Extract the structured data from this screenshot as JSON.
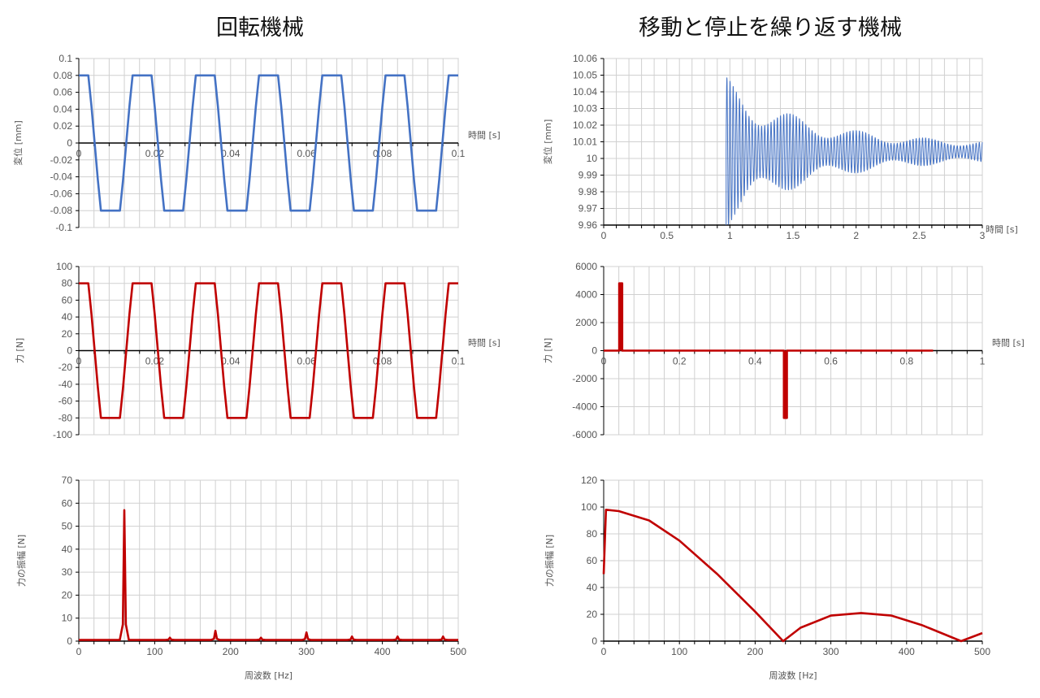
{
  "titles": {
    "left": "回転機械",
    "right": "移動と停止を繰り返す機械"
  },
  "colors": {
    "blue": "#4472c4",
    "red": "#c00000",
    "grid": "#d0d0d0",
    "axis": "#000000"
  },
  "chart_data": [
    {
      "id": "rot-disp",
      "type": "line",
      "color": "blue",
      "xlabel": "時間 [s]",
      "ylabel": "変位 [mm]",
      "xlim": [
        0,
        0.1
      ],
      "ylim": [
        -0.1,
        0.1
      ],
      "xticks": [
        0,
        0.02,
        0.04,
        0.06,
        0.08,
        0.1
      ],
      "xticklabels": [
        "0",
        "0.02",
        "0.04",
        "0.06",
        "0.08",
        "0.1"
      ],
      "yticks": [
        -0.1,
        -0.08,
        -0.06,
        -0.04,
        -0.02,
        0,
        0.02,
        0.04,
        0.06,
        0.08,
        0.1
      ],
      "yticklabels": [
        "-0.1",
        "-0.08",
        "-0.06",
        "-0.04",
        "-0.02",
        "0",
        "0.02",
        "0.04",
        "0.06",
        "0.08",
        "0.1"
      ],
      "x_tick_labels_on_zero_line": true,
      "signal": {
        "kind": "clipped-cosine",
        "frequency_hz": 60,
        "amplitude": 0.14,
        "clip": 0.08
      }
    },
    {
      "id": "rot-force",
      "type": "line",
      "color": "red",
      "xlabel": "時間 [s]",
      "ylabel": "力 [N]",
      "xlim": [
        0,
        0.1
      ],
      "ylim": [
        -100,
        100
      ],
      "xticks": [
        0,
        0.02,
        0.04,
        0.06,
        0.08,
        0.1
      ],
      "xticklabels": [
        "0",
        "0.02",
        "0.04",
        "0.06",
        "0.08",
        "0.1"
      ],
      "yticks": [
        -100,
        -80,
        -60,
        -40,
        -20,
        0,
        20,
        40,
        60,
        80,
        100
      ],
      "yticklabels": [
        "-100",
        "-80",
        "-60",
        "-40",
        "-20",
        "0",
        "20",
        "40",
        "60",
        "80",
        "100"
      ],
      "x_tick_labels_on_zero_line": true,
      "signal": {
        "kind": "clipped-cosine",
        "frequency_hz": 60,
        "amplitude": 140,
        "clip": 80
      }
    },
    {
      "id": "rot-spectrum",
      "type": "line",
      "color": "red",
      "xlabel": "周波数 [Hz]",
      "ylabel": "力の振幅 [N]",
      "xlim": [
        0,
        500
      ],
      "ylim": [
        0,
        70
      ],
      "xticks": [
        0,
        100,
        200,
        300,
        400,
        500
      ],
      "xticklabels": [
        "0",
        "100",
        "200",
        "300",
        "400",
        "500"
      ],
      "yticks": [
        0,
        10,
        20,
        30,
        40,
        50,
        60,
        70
      ],
      "yticklabels": [
        "0",
        "10",
        "20",
        "30",
        "40",
        "50",
        "60",
        "70"
      ],
      "x_tick_labels_on_zero_line": false,
      "peaks": [
        {
          "x": 60,
          "y": 57
        },
        {
          "x": 120,
          "y": 1.5
        },
        {
          "x": 180,
          "y": 4.5
        },
        {
          "x": 240,
          "y": 1.5
        },
        {
          "x": 300,
          "y": 3.8
        },
        {
          "x": 360,
          "y": 2
        },
        {
          "x": 420,
          "y": 2
        },
        {
          "x": 480,
          "y": 2
        }
      ],
      "baseline": 0.5
    },
    {
      "id": "stop-disp",
      "type": "line",
      "color": "blue",
      "xlabel": "時間 [s]",
      "ylabel": "変位 [mm]",
      "xlim": [
        0,
        3
      ],
      "ylim": [
        9.96,
        10.06
      ],
      "xticks": [
        0,
        0.5,
        1,
        1.5,
        2,
        2.5,
        3
      ],
      "xticklabels": [
        "0",
        "0.5",
        "1",
        "1.5",
        "2",
        "2.5",
        "3"
      ],
      "yticks": [
        9.96,
        9.97,
        9.98,
        9.99,
        10,
        10.01,
        10.02,
        10.03,
        10.04,
        10.05,
        10.06
      ],
      "yticklabels": [
        "9.96",
        "9.97",
        "9.98",
        "9.99",
        "10",
        "10.01",
        "10.02",
        "10.03",
        "10.04",
        "10.05",
        "10.06"
      ],
      "x_tick_labels_on_zero_line": false,
      "signal": {
        "kind": "decaying-oscillation",
        "start_s": 0.97,
        "center": 10.004,
        "initial_amplitude": 0.045,
        "final_amplitude": 0.005,
        "frequency_hz": 40
      }
    },
    {
      "id": "stop-force",
      "type": "line",
      "color": "red",
      "xlabel": "時間 [s]",
      "ylabel": "力 [N]",
      "xlim": [
        0,
        1
      ],
      "ylim": [
        -6000,
        6000
      ],
      "xticks": [
        0,
        0.2,
        0.4,
        0.6,
        0.8,
        1
      ],
      "xticklabels": [
        "0",
        "0.2",
        "0.4",
        "0.6",
        "0.8",
        "1"
      ],
      "yticks": [
        -6000,
        -4000,
        -2000,
        0,
        2000,
        4000,
        6000
      ],
      "yticklabels": [
        "-6000",
        "-4000",
        "-2000",
        "0",
        "2000",
        "4000",
        "6000"
      ],
      "x_tick_labels_on_zero_line": true,
      "pulses": [
        {
          "x": 0.045,
          "y": 4800
        },
        {
          "x": 0.48,
          "y": -4800
        }
      ],
      "line_end_x": 0.87
    },
    {
      "id": "stop-spectrum",
      "type": "line",
      "color": "red",
      "xlabel": "周波数 [Hz]",
      "ylabel": "力の振幅 [N]",
      "xlim": [
        0,
        500
      ],
      "ylim": [
        0,
        120
      ],
      "xticks": [
        0,
        100,
        200,
        300,
        400,
        500
      ],
      "xticklabels": [
        "0",
        "100",
        "200",
        "300",
        "400",
        "500"
      ],
      "yticks": [
        0,
        20,
        40,
        60,
        80,
        100,
        120
      ],
      "yticklabels": [
        "0",
        "20",
        "40",
        "60",
        "80",
        "100",
        "120"
      ],
      "x_tick_labels_on_zero_line": false,
      "points": [
        [
          0,
          50
        ],
        [
          3,
          98
        ],
        [
          20,
          97
        ],
        [
          60,
          90
        ],
        [
          100,
          75
        ],
        [
          150,
          50
        ],
        [
          200,
          22
        ],
        [
          237,
          0
        ],
        [
          260,
          10
        ],
        [
          300,
          19
        ],
        [
          340,
          21
        ],
        [
          380,
          19
        ],
        [
          420,
          12
        ],
        [
          472,
          0
        ],
        [
          500,
          6
        ]
      ]
    }
  ]
}
